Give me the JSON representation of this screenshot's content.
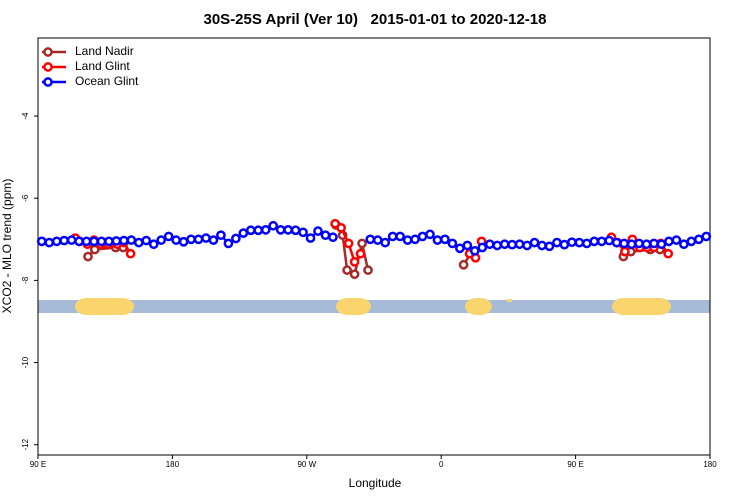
{
  "chart_data": {
    "type": "line",
    "title": "30S-25S April (Ver 10)   2015-01-01 to 2020-12-18",
    "x_label": "Longitude",
    "y_label": "XCO2 - MLO trend (ppm)",
    "xlim": [
      90,
      540
    ],
    "xticks": [
      {
        "value": 90,
        "label": "90 E"
      },
      180,
      {
        "value": 270,
        "label": "90 W"
      },
      {
        "value": 360,
        "label": "0"
      },
      {
        "value": 450,
        "label": "90 E"
      },
      {
        "value": 540,
        "label": "180"
      }
    ],
    "ylim": [
      -12.25,
      -2.1
    ],
    "yticks": [
      -12,
      -10,
      -8,
      -6,
      -4
    ],
    "legend": "upper-left",
    "series": [
      {
        "name": "Land Nadir",
        "color": "#a52a2a",
        "x": [
          123.5,
          128,
          142,
          147,
          200,
          289.5,
          294,
          297,
          302,
          307,
          311,
          350,
          375,
          380.5,
          420,
          482,
          487,
          500,
          506.5
        ],
        "values": [
          -7.42,
          -7.25,
          -7.2,
          -7.2,
          null,
          -6.65,
          -6.9,
          -7.75,
          -7.85,
          -7.1,
          -7.75,
          null,
          -7.62,
          -7.3,
          null,
          -7.42,
          -7.3,
          -7.25,
          -7.25
        ]
      },
      {
        "name": "Land Glint",
        "color": "#ff0000",
        "x": [
          115,
          118,
          123,
          127.5,
          132,
          137,
          143,
          147.5,
          152,
          200,
          289,
          293,
          298,
          302,
          306,
          320,
          379,
          383,
          387,
          420,
          474,
          478,
          483,
          488,
          493,
          498,
          502.5,
          507,
          512
        ],
        "values": [
          -6.97,
          -7.05,
          -7.12,
          -7.02,
          -7.12,
          -7.12,
          -7.12,
          -7.08,
          -7.35,
          null,
          -6.62,
          -6.72,
          -7.1,
          -7.55,
          -7.35,
          null,
          -7.35,
          -7.45,
          -7.05,
          null,
          -6.95,
          -7.08,
          -7.3,
          -7.0,
          -7.2,
          -7.2,
          -7.2,
          -7.1,
          -7.35
        ]
      },
      {
        "name": "Ocean Glint",
        "color": "#0000ff",
        "x": [
          92.5,
          97.5,
          102.5,
          107.5,
          112.5,
          117.5,
          122.5,
          127.5,
          132.5,
          137.5,
          142.5,
          147.5,
          152.5,
          157.5,
          162.5,
          167.5,
          172.5,
          177.5,
          182.5,
          187.5,
          192.5,
          197.5,
          202.5,
          207.5,
          212.5,
          217.5,
          222.5,
          227.5,
          232.5,
          237.5,
          242.5,
          247.5,
          252.5,
          257.5,
          262.5,
          267.5,
          272.5,
          277.5,
          282.5,
          287.5,
          292.5,
          297.5,
          302.5,
          307.5,
          312.5,
          317.5,
          322.5,
          327.5,
          332.5,
          337.5,
          342.5,
          347.5,
          352.5,
          357.5,
          362.5,
          367.5,
          372.5,
          377.5,
          382.5,
          387.5,
          392.5,
          397.5,
          402.5,
          407.5,
          412.5,
          417.5,
          422.5,
          427.5,
          432.5,
          437.5,
          442.5,
          447.5,
          452.5,
          457.5,
          462.5,
          467.5,
          472.5,
          477.5,
          482.5,
          487.5,
          492.5,
          497.5,
          502.5,
          507.5,
          512.5,
          517.5,
          522.5,
          527.5,
          532.5,
          537.5
        ],
        "values": [
          -7.05,
          -7.08,
          -7.05,
          -7.03,
          -7.02,
          -7.05,
          -7.05,
          -7.05,
          -7.05,
          -7.05,
          -7.04,
          -7.03,
          -7.02,
          -7.08,
          -7.03,
          -7.12,
          -7.02,
          -6.93,
          -7.02,
          -7.06,
          -7.0,
          -7.0,
          -6.97,
          -7.02,
          -6.9,
          -7.1,
          -6.98,
          -6.85,
          -6.78,
          -6.78,
          -6.77,
          -6.67,
          -6.77,
          -6.77,
          -6.78,
          -6.83,
          -6.97,
          -6.8,
          -6.9,
          -6.95,
          null,
          null,
          null,
          null,
          -7.0,
          -7.02,
          -7.08,
          -6.93,
          -6.93,
          -7.02,
          -7.0,
          -6.93,
          -6.88,
          -7.02,
          -7.0,
          -7.1,
          -7.22,
          -7.15,
          -7.28,
          -7.2,
          -7.12,
          -7.15,
          -7.12,
          -7.13,
          -7.12,
          -7.15,
          -7.08,
          -7.15,
          -7.17,
          -7.08,
          -7.13,
          -7.07,
          -7.08,
          -7.1,
          -7.05,
          -7.05,
          -7.03,
          -7.08,
          -7.1,
          -7.12,
          -7.1,
          -7.12,
          -7.1,
          -7.12,
          -7.05,
          -7.02,
          -7.12,
          -7.05,
          -7.0,
          -6.93
        ]
      }
    ]
  }
}
